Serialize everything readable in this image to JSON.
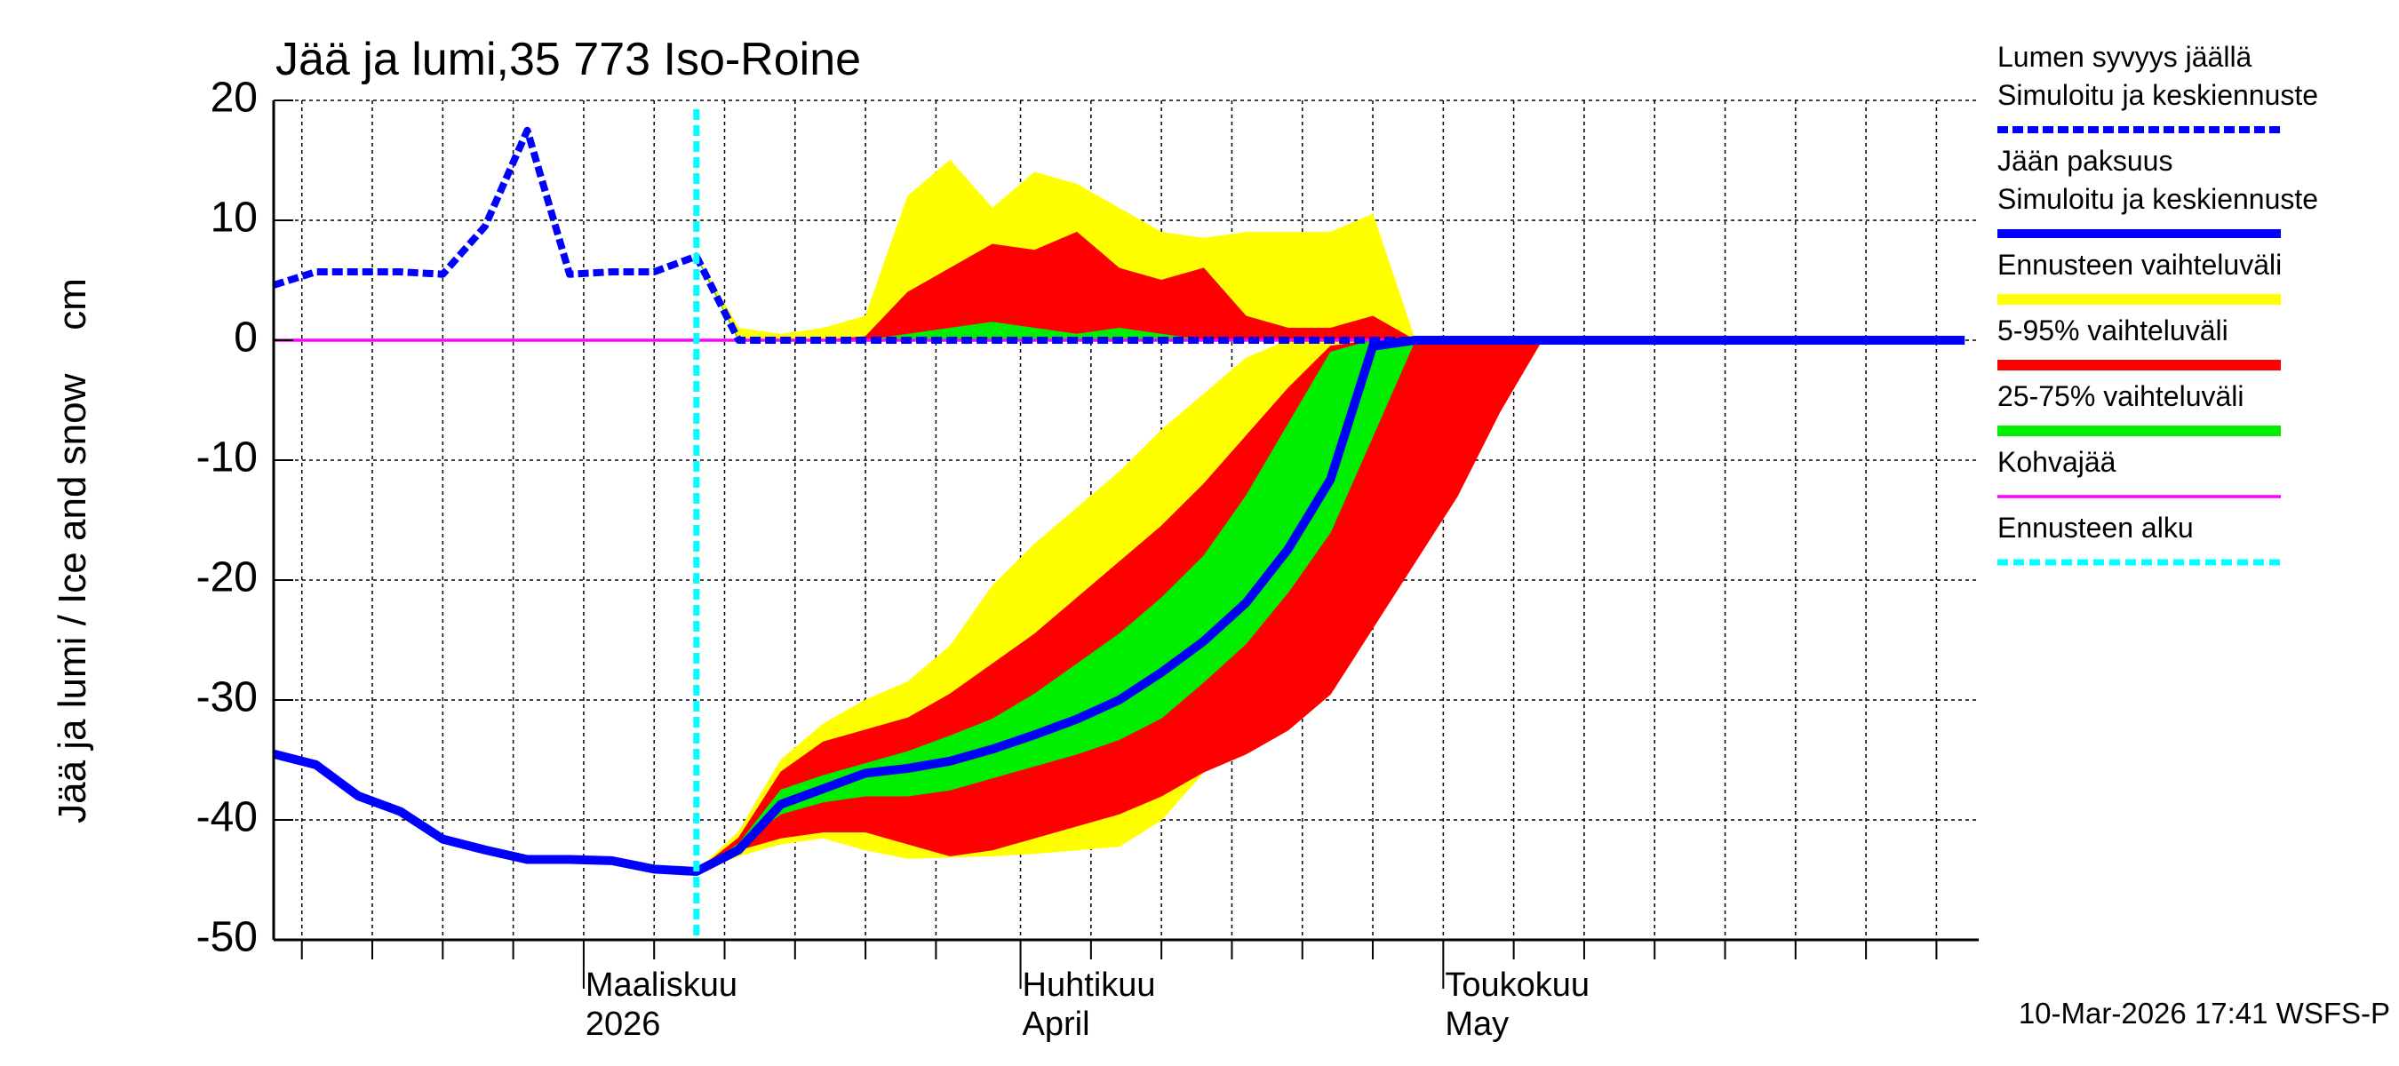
{
  "chart_data": {
    "type": "line",
    "title": "Jää ja lumi,35 773 Iso-Roine",
    "ylabel": "Jää ja lumi / Ice and snow    cm",
    "footer": "10-Mar-2026 17:41 WSFS-P",
    "grid": true,
    "ylim": [
      -50,
      20
    ],
    "yticks": [
      20,
      10,
      0,
      -10,
      -20,
      -30,
      -40,
      -50
    ],
    "xlim": [
      0,
      121
    ],
    "xticks": [
      {
        "value": 22,
        "label": [
          "Maaliskuu",
          "2026"
        ]
      },
      {
        "value": 53,
        "label": [
          "Huhtikuu",
          "April"
        ]
      },
      {
        "value": 83,
        "label": [
          "Toukokuu",
          "May"
        ]
      }
    ],
    "xgrid": [
      2,
      7,
      12,
      17,
      27,
      32,
      37,
      42,
      47,
      58,
      63,
      68,
      73,
      78,
      88,
      93,
      98,
      103,
      108,
      113,
      118
    ],
    "x": [
      0,
      3,
      6,
      9,
      12,
      15,
      18,
      21,
      24,
      27,
      30,
      33,
      36,
      39,
      42,
      45,
      48,
      51,
      54,
      57,
      60,
      63,
      66,
      69,
      72,
      75,
      78,
      81,
      84,
      87,
      90,
      93,
      96,
      99,
      102,
      105,
      108,
      111,
      114,
      117,
      120
    ],
    "series": [
      {
        "name": [
          "Lumen syvyys jäällä",
          "Simuloitu ja keskiennuste"
        ],
        "color": "#0000ff",
        "style": "dashed",
        "values": [
          4.6,
          5.7,
          5.7,
          5.7,
          5.5,
          9.5,
          17.5,
          5.5,
          5.7,
          5.7,
          7,
          0,
          0,
          0,
          0,
          0,
          0,
          0,
          0,
          0,
          0,
          0,
          0,
          0,
          0,
          0,
          0,
          0,
          0,
          0,
          0,
          0,
          0,
          0,
          0,
          0,
          0,
          0,
          0,
          0,
          0
        ]
      },
      {
        "name": [
          "Jään paksuus",
          "Simuloitu ja keskiennuste"
        ],
        "color": "#0000ff",
        "style": "solid",
        "values": [
          -34.5,
          -35.4,
          -38,
          -39.3,
          -41.6,
          -42.5,
          -43.3,
          -43.3,
          -43.4,
          -44.1,
          -44.3,
          -42.5,
          -38.7,
          -37.4,
          -36.1,
          -35.7,
          -35.1,
          -34.1,
          -32.9,
          -31.6,
          -30,
          -27.7,
          -25.1,
          -21.9,
          -17.4,
          -11.6,
          -0.5,
          0,
          0,
          0,
          0,
          0,
          0,
          0,
          0,
          0,
          0,
          0,
          0,
          0,
          0
        ]
      },
      {
        "name": "Kohvajää",
        "color": "#ff00ff",
        "style": "thin",
        "values": [
          0,
          0,
          0,
          0,
          0,
          0,
          0,
          0,
          0,
          0,
          0,
          0,
          0,
          0,
          0,
          0,
          0,
          0,
          0,
          0,
          0,
          0,
          0,
          0,
          0,
          0,
          0,
          0,
          0,
          0,
          0,
          0,
          0,
          0,
          0,
          0,
          0,
          0,
          0,
          0,
          0
        ]
      }
    ],
    "bands": [
      {
        "name": "Ennusteen vaihteluväli",
        "color": "#ffff00",
        "ice_low": [
          null,
          null,
          null,
          null,
          null,
          null,
          null,
          null,
          null,
          null,
          -44.3,
          -43,
          -42,
          -41.5,
          -42.5,
          -43.2,
          -43.1,
          -43,
          -42.8,
          -42.5,
          -42.2,
          -40,
          -36,
          -34,
          -31,
          -27.5,
          -23,
          -17,
          -11,
          -5,
          0,
          null,
          null,
          null,
          null,
          null,
          null,
          null,
          null,
          null,
          null
        ],
        "ice_high": [
          null,
          null,
          null,
          null,
          null,
          null,
          null,
          null,
          null,
          null,
          -44.3,
          -41,
          -35,
          -32,
          -30,
          -28.5,
          -25.5,
          -20.5,
          -17,
          -14,
          -11,
          -7.5,
          -4.5,
          -1.5,
          0,
          0,
          0,
          0,
          0,
          0,
          0,
          null,
          null,
          null,
          null,
          null,
          null,
          null,
          null,
          null,
          null
        ],
        "snow_low": [
          null,
          null,
          null,
          null,
          null,
          null,
          null,
          null,
          null,
          null,
          7,
          0,
          0,
          0,
          0,
          0,
          0,
          0,
          0,
          0,
          0,
          0,
          0,
          0,
          0,
          0,
          0,
          0,
          null,
          null,
          null,
          null,
          null,
          null,
          null,
          null,
          null,
          null,
          null,
          null,
          null
        ],
        "snow_high": [
          null,
          null,
          null,
          null,
          null,
          null,
          null,
          null,
          null,
          null,
          7,
          1,
          0.5,
          1,
          2,
          12,
          15,
          11,
          14,
          13,
          11,
          9,
          8.5,
          9,
          9,
          9,
          10.5,
          0,
          null,
          null,
          null,
          null,
          null,
          null,
          null,
          null,
          null,
          null,
          null,
          null,
          null
        ]
      },
      {
        "name": "5-95% vaihteluväli",
        "color": "#ff0000",
        "ice_low": [
          null,
          null,
          null,
          null,
          null,
          null,
          null,
          null,
          null,
          null,
          -44.3,
          -42.5,
          -41.5,
          -41,
          -41,
          -42,
          -43,
          -42.5,
          -41.5,
          -40.5,
          -39.5,
          -38,
          -36,
          -34.5,
          -32.5,
          -29.5,
          -24,
          -18.5,
          -13,
          -6,
          0,
          null,
          null,
          null,
          null,
          null,
          null,
          null,
          null,
          null,
          null
        ],
        "ice_high": [
          null,
          null,
          null,
          null,
          null,
          null,
          null,
          null,
          null,
          null,
          -44.3,
          -41.5,
          -36,
          -33.5,
          -32.5,
          -31.5,
          -29.5,
          -27,
          -24.5,
          -21.5,
          -18.5,
          -15.5,
          -12,
          -8,
          -4,
          -0.5,
          0,
          0,
          0,
          0,
          0,
          null,
          null,
          null,
          null,
          null,
          null,
          null,
          null,
          null,
          null
        ],
        "snow_low": [
          null,
          null,
          null,
          null,
          null,
          null,
          null,
          null,
          null,
          null,
          7,
          0,
          0,
          0,
          0,
          0,
          0,
          0,
          0,
          0,
          0,
          0,
          0,
          0,
          0,
          0,
          0,
          0,
          null,
          null,
          null,
          null,
          null,
          null,
          null,
          null,
          null,
          null,
          null,
          null,
          null
        ],
        "snow_high": [
          null,
          null,
          null,
          null,
          null,
          null,
          null,
          null,
          null,
          null,
          7,
          0,
          0,
          0,
          0.3,
          4,
          6,
          8,
          7.5,
          9,
          6,
          5,
          6,
          2,
          1,
          1,
          2,
          0,
          null,
          null,
          null,
          null,
          null,
          null,
          null,
          null,
          null,
          null,
          null,
          null,
          null
        ]
      },
      {
        "name": "25-75% vaihteluväli",
        "color": "#00ee00",
        "ice_low": [
          null,
          null,
          null,
          null,
          null,
          null,
          null,
          null,
          null,
          null,
          -44.3,
          -42,
          -39.5,
          -38.5,
          -38,
          -38,
          -37.5,
          -36.5,
          -35.5,
          -34.5,
          -33.3,
          -31.5,
          -28.5,
          -25.3,
          -21,
          -16,
          -8,
          0,
          0,
          0,
          0,
          null,
          null,
          null,
          null,
          null,
          null,
          null,
          null,
          null,
          null
        ],
        "ice_high": [
          null,
          null,
          null,
          null,
          null,
          null,
          null,
          null,
          null,
          null,
          -44.3,
          -42,
          -37.5,
          -36.3,
          -35.3,
          -34.3,
          -33,
          -31.6,
          -29.5,
          -27,
          -24.5,
          -21.5,
          -18,
          -13,
          -7,
          -1,
          0,
          0,
          0,
          0,
          0,
          null,
          null,
          null,
          null,
          null,
          null,
          null,
          null,
          null,
          null
        ],
        "snow_low": [
          null,
          null,
          null,
          null,
          null,
          null,
          null,
          null,
          null,
          null,
          7,
          0,
          0,
          0,
          0,
          0,
          0,
          0,
          0,
          0,
          0,
          0,
          0,
          0,
          0,
          0,
          0,
          0,
          null,
          null,
          null,
          null,
          null,
          null,
          null,
          null,
          null,
          null,
          null,
          null,
          null
        ],
        "snow_high": [
          null,
          null,
          null,
          null,
          null,
          null,
          null,
          null,
          null,
          null,
          7,
          0,
          0,
          0,
          0,
          0.5,
          1,
          1.5,
          1,
          0.5,
          1,
          0.5,
          0,
          0,
          0,
          0,
          0,
          0,
          null,
          null,
          null,
          null,
          null,
          null,
          null,
          null,
          null,
          null,
          null,
          null,
          null
        ]
      }
    ],
    "forecast_start": {
      "name": "Ennusteen alku",
      "color": "#00ffff",
      "x": 30
    }
  }
}
